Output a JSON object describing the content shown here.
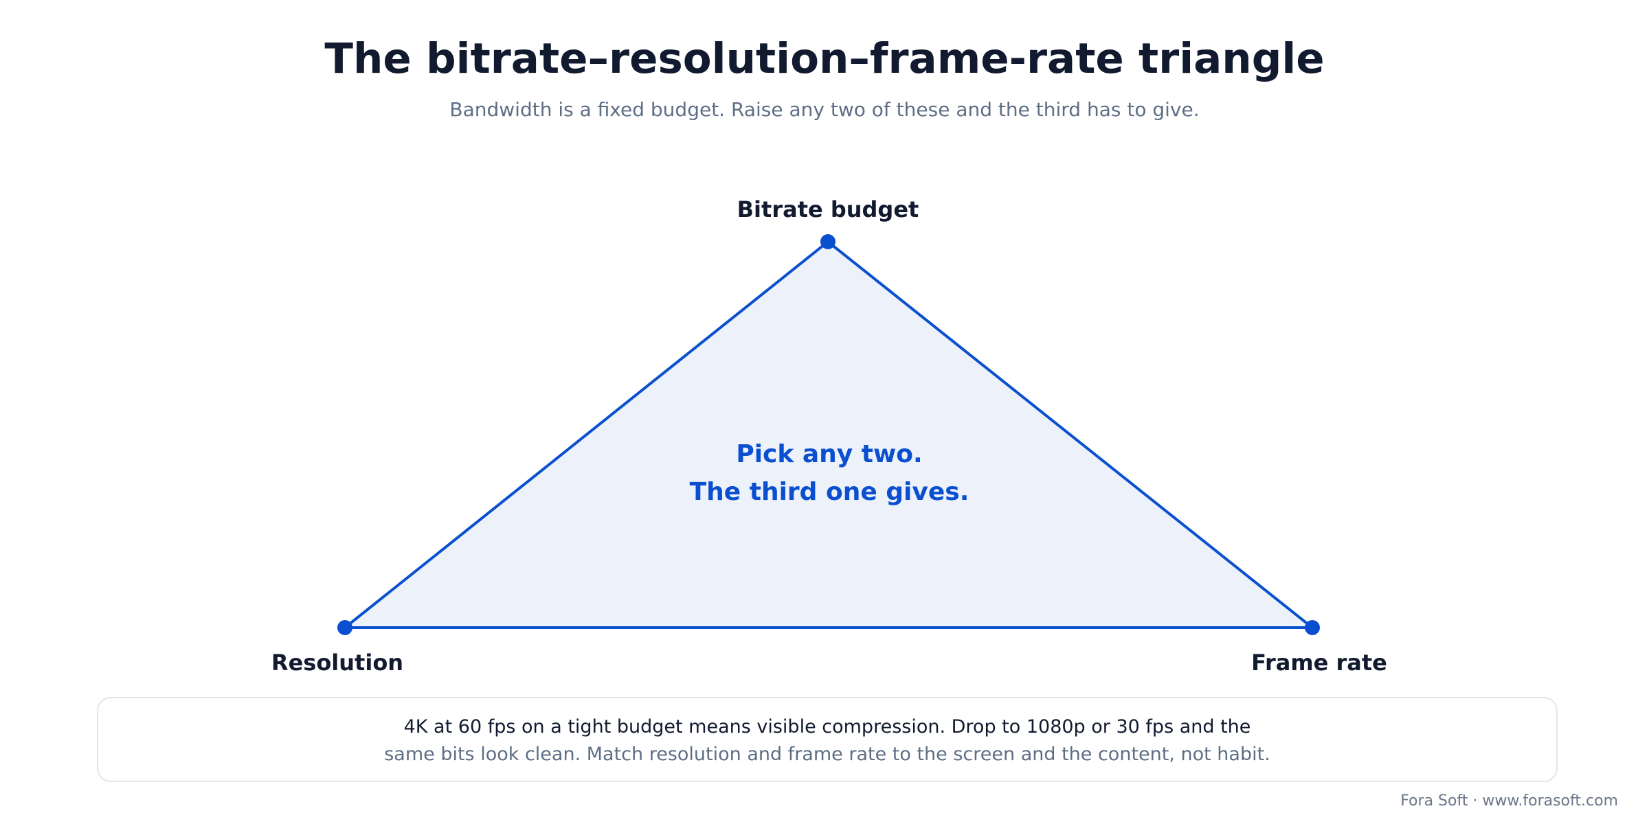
{
  "header": {
    "title": "The bitrate–resolution–frame-rate triangle",
    "subtitle": "Bandwidth is a fixed budget. Raise any two of these and the third has to give."
  },
  "triangle": {
    "top_label": "Bitrate budget",
    "left_label": "Resolution",
    "right_label": "Frame rate",
    "center_line1": "Pick any two.",
    "center_line2": "The third one gives."
  },
  "note": {
    "line1": "4K at 60 fps on a tight budget means visible compression. Drop to 1080p or 30 fps and the",
    "line2": "same bits look clean. Match resolution and frame rate to the screen and the content, not habit."
  },
  "footer": {
    "credit": "Fora Soft · www.forasoft.com"
  },
  "colors": {
    "accent": "#0a4fcf",
    "fill": "#ecf1fa",
    "text_dark": "#111a2e",
    "text_muted": "#5e6e85"
  }
}
